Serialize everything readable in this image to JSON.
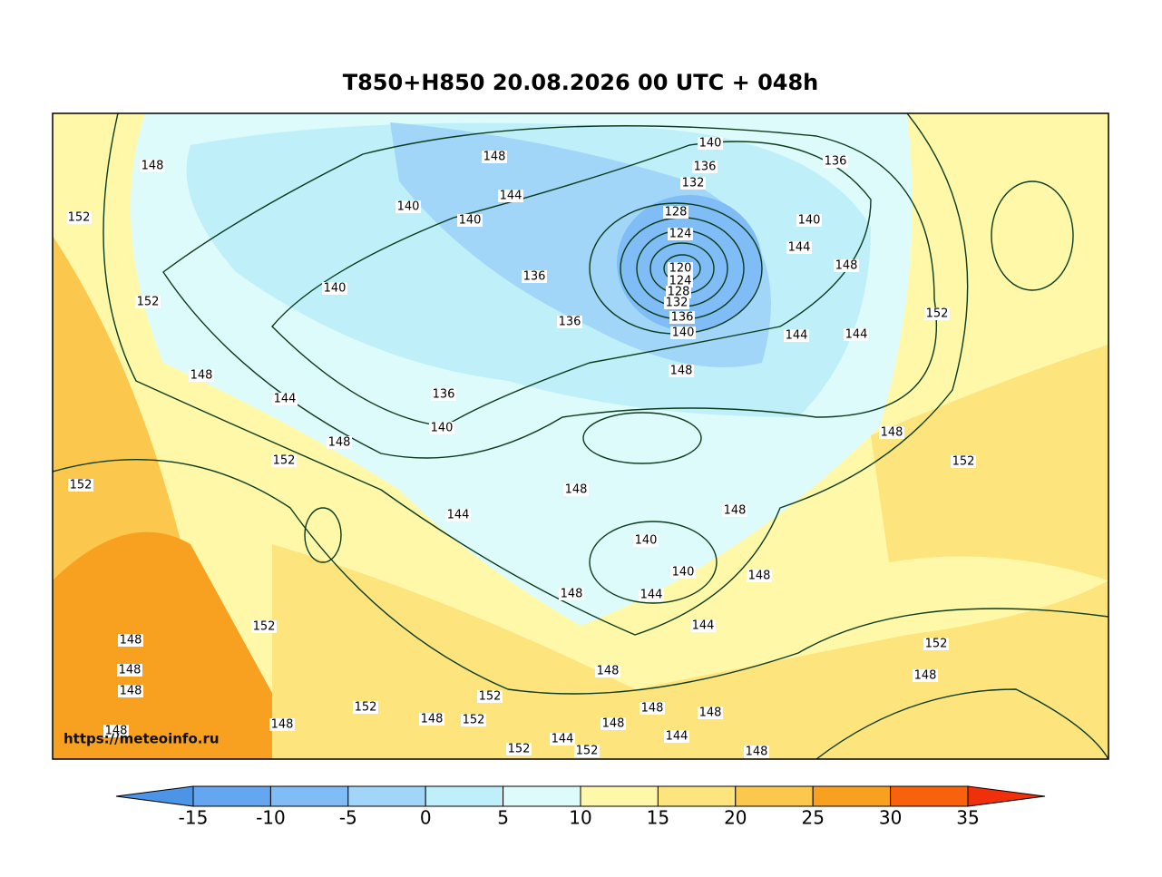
{
  "title": "T850+H850 20.08.2026 00 UTC + 048h",
  "watermark": "https://meteoinfo.ru",
  "colorbar": {
    "ticks": [
      -15,
      -10,
      -5,
      0,
      5,
      10,
      15,
      20,
      25,
      30,
      35
    ],
    "colors": [
      "#4c95e6",
      "#64a6ef",
      "#80bcf6",
      "#a2d6f9",
      "#bff0f9",
      "#defbfc",
      "#fff8a8",
      "#fde47c",
      "#fbc74c",
      "#f8a020",
      "#f8620c",
      "#f0300a"
    ]
  },
  "contour_labels": [
    148,
    152,
    148,
    144,
    140,
    140,
    140,
    136,
    132,
    128,
    124,
    120,
    124,
    128,
    132,
    136,
    140,
    136,
    140,
    144,
    148,
    152,
    152,
    140,
    136,
    136,
    148,
    144,
    136,
    140,
    148,
    152,
    152,
    148,
    144,
    148,
    144,
    144,
    148,
    148,
    152,
    140,
    140,
    148,
    148,
    144,
    144,
    152,
    148,
    148,
    148,
    152,
    148,
    148,
    152,
    152,
    148,
    148,
    148,
    152,
    148,
    144,
    144,
    148,
    152,
    152,
    148,
    148
  ]
}
